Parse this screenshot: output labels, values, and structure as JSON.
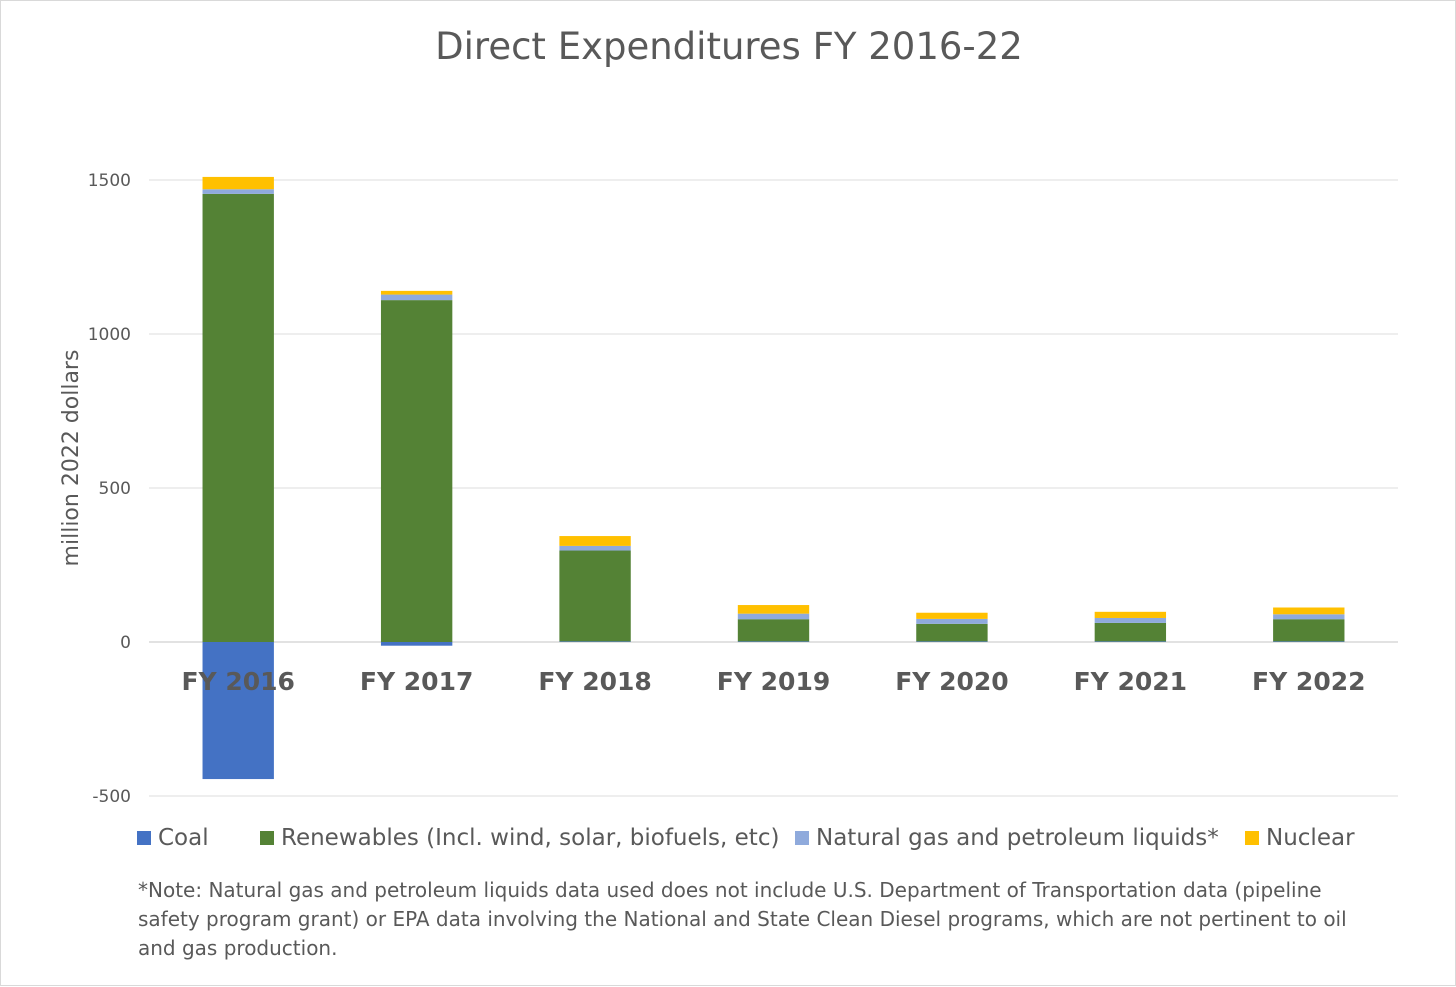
{
  "chart_data": {
    "type": "bar",
    "stacked": true,
    "title": "Direct Expenditures FY 2016-22",
    "xlabel": "",
    "ylabel": "million 2022 dollars",
    "categories": [
      "FY 2016",
      "FY 2017",
      "FY 2018",
      "FY 2019",
      "FY 2020",
      "FY 2021",
      "FY 2022"
    ],
    "ylim": [
      -500,
      1500
    ],
    "yticks": [
      -500,
      0,
      500,
      1000,
      1500
    ],
    "grid": true,
    "legend_position": "bottom",
    "series": [
      {
        "name": "Coal",
        "color": "#4472c4",
        "values": [
          -445,
          -12,
          2,
          2,
          2,
          2,
          2
        ]
      },
      {
        "name": "Renewables (Incl. wind, solar, biofuels, etc)",
        "color": "#548235",
        "values": [
          1455,
          1110,
          295,
          72,
          57,
          60,
          72
        ]
      },
      {
        "name": "Natural gas and petroleum liquids*",
        "color": "#8faadc",
        "values": [
          15,
          18,
          15,
          18,
          16,
          16,
          16
        ]
      },
      {
        "name": "Nuclear",
        "color": "#ffc000",
        "values": [
          40,
          12,
          32,
          28,
          20,
          20,
          22
        ]
      }
    ]
  },
  "footnote": "*Note: Natural gas and petroleum liquids data used does not include U.S. Department of Transportation data (pipeline safety program grant) or EPA data involving the National and State Clean Diesel programs, which are not pertinent to oil and gas production."
}
